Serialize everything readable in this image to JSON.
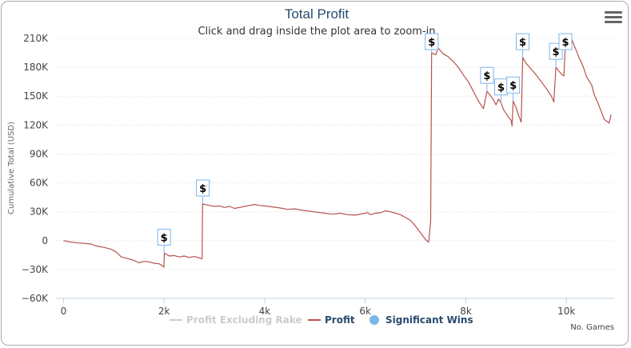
{
  "chart_data": {
    "type": "line",
    "title": "Total Profit",
    "subtitle": "Click and drag inside the plot area to zoom-in",
    "ylabel": "Cumulative Total (USD)",
    "xlabel": "No. Games",
    "xlim": [
      -150,
      10950
    ],
    "ylim": [
      -60000,
      210000
    ],
    "x_ticks": [
      0,
      2000,
      4000,
      6000,
      8000,
      10000
    ],
    "x_tick_labels": [
      "0",
      "2k",
      "4k",
      "6k",
      "8k",
      "10k"
    ],
    "y_ticks": [
      -60000,
      -30000,
      0,
      30000,
      60000,
      90000,
      120000,
      150000,
      180000,
      210000
    ],
    "y_tick_labels": [
      "−60K",
      "−30K",
      "0",
      "30K",
      "60K",
      "90K",
      "120K",
      "150K",
      "180K",
      "210K"
    ],
    "grid": "horizontal dotted",
    "legend_position": "bottom",
    "series": [
      {
        "name": "Profit",
        "color": "#b5534f",
        "points": [
          [
            0,
            0
          ],
          [
            150,
            -1500
          ],
          [
            300,
            -2500
          ],
          [
            450,
            -3000
          ],
          [
            550,
            -3500
          ],
          [
            650,
            -5500
          ],
          [
            800,
            -7000
          ],
          [
            950,
            -9000
          ],
          [
            1050,
            -12000
          ],
          [
            1150,
            -17000
          ],
          [
            1300,
            -19000
          ],
          [
            1400,
            -20500
          ],
          [
            1500,
            -23000
          ],
          [
            1600,
            -21500
          ],
          [
            1700,
            -22000
          ],
          [
            1800,
            -23500
          ],
          [
            1900,
            -24000
          ],
          [
            1950,
            -25500
          ],
          [
            1995,
            -27500
          ],
          [
            2005,
            -13000
          ],
          [
            2100,
            -16000
          ],
          [
            2200,
            -15500
          ],
          [
            2300,
            -17000
          ],
          [
            2400,
            -16000
          ],
          [
            2500,
            -17500
          ],
          [
            2600,
            -16500
          ],
          [
            2700,
            -18000
          ],
          [
            2755,
            -19000
          ],
          [
            2765,
            38000
          ],
          [
            2900,
            36500
          ],
          [
            3000,
            35500
          ],
          [
            3100,
            36000
          ],
          [
            3200,
            34500
          ],
          [
            3300,
            35500
          ],
          [
            3400,
            33500
          ],
          [
            3500,
            34500
          ],
          [
            3600,
            35500
          ],
          [
            3700,
            36500
          ],
          [
            3800,
            37500
          ],
          [
            3900,
            36500
          ],
          [
            4000,
            36000
          ],
          [
            4150,
            35000
          ],
          [
            4300,
            34000
          ],
          [
            4450,
            32500
          ],
          [
            4600,
            33000
          ],
          [
            4750,
            31500
          ],
          [
            4900,
            30500
          ],
          [
            5050,
            29500
          ],
          [
            5200,
            28500
          ],
          [
            5350,
            27500
          ],
          [
            5500,
            28500
          ],
          [
            5650,
            27000
          ],
          [
            5800,
            26500
          ],
          [
            5950,
            28000
          ],
          [
            6050,
            29000
          ],
          [
            6100,
            27000
          ],
          [
            6200,
            28500
          ],
          [
            6300,
            29000
          ],
          [
            6400,
            31000
          ],
          [
            6500,
            30000
          ],
          [
            6600,
            28500
          ],
          [
            6700,
            27000
          ],
          [
            6800,
            24000
          ],
          [
            6900,
            21000
          ],
          [
            7000,
            15000
          ],
          [
            7100,
            8000
          ],
          [
            7200,
            1000
          ],
          [
            7260,
            -1500
          ],
          [
            7300,
            20000
          ],
          [
            7320,
            195000
          ],
          [
            7400,
            193000
          ],
          [
            7450,
            200000
          ],
          [
            7550,
            194000
          ],
          [
            7650,
            191000
          ],
          [
            7750,
            186000
          ],
          [
            7850,
            180000
          ],
          [
            7950,
            172000
          ],
          [
            8050,
            165000
          ],
          [
            8150,
            155000
          ],
          [
            8250,
            145000
          ],
          [
            8350,
            137000
          ],
          [
            8420,
            155000
          ],
          [
            8500,
            150000
          ],
          [
            8550,
            146000
          ],
          [
            8600,
            141000
          ],
          [
            8650,
            147000
          ],
          [
            8700,
            143000
          ],
          [
            8750,
            136000
          ],
          [
            8800,
            132000
          ],
          [
            8850,
            128000
          ],
          [
            8900,
            125000
          ],
          [
            8920,
            119000
          ],
          [
            8940,
            145000
          ],
          [
            9000,
            138000
          ],
          [
            9050,
            130000
          ],
          [
            9100,
            123000
          ],
          [
            9130,
            190000
          ],
          [
            9200,
            184000
          ],
          [
            9300,
            178000
          ],
          [
            9400,
            172000
          ],
          [
            9500,
            165000
          ],
          [
            9600,
            158000
          ],
          [
            9700,
            150000
          ],
          [
            9750,
            144000
          ],
          [
            9790,
            180000
          ],
          [
            9850,
            176000
          ],
          [
            9900,
            173000
          ],
          [
            9950,
            171000
          ],
          [
            9980,
            205000
          ],
          [
            10050,
            200000
          ],
          [
            10100,
            210000
          ],
          [
            10150,
            203000
          ],
          [
            10200,
            197000
          ],
          [
            10250,
            190000
          ],
          [
            10300,
            185000
          ],
          [
            10350,
            178000
          ],
          [
            10400,
            170000
          ],
          [
            10450,
            166000
          ],
          [
            10500,
            162000
          ],
          [
            10550,
            152000
          ],
          [
            10600,
            146000
          ],
          [
            10650,
            140000
          ],
          [
            10700,
            133000
          ],
          [
            10750,
            126000
          ],
          [
            10800,
            124000
          ],
          [
            10850,
            122000
          ],
          [
            10890,
            131000
          ]
        ]
      }
    ],
    "markers": {
      "name": "Significant Wins",
      "symbol": "$",
      "points": [
        [
          2000,
          -13000
        ],
        [
          2770,
          38000
        ],
        [
          7320,
          195000
        ],
        [
          8420,
          155000
        ],
        [
          8700,
          143000
        ],
        [
          8940,
          145000
        ],
        [
          9130,
          190000
        ],
        [
          9790,
          180000
        ],
        [
          9980,
          205000
        ]
      ]
    },
    "legend": [
      {
        "label": "Profit Excluding Rake",
        "color": "#cccccc",
        "symbol": "line",
        "active": false
      },
      {
        "label": "Profit",
        "color": "#b5534f",
        "symbol": "line",
        "active": true
      },
      {
        "label": "Significant Wins",
        "color": "#7cb5ec",
        "symbol": "circle",
        "active": true
      }
    ]
  }
}
